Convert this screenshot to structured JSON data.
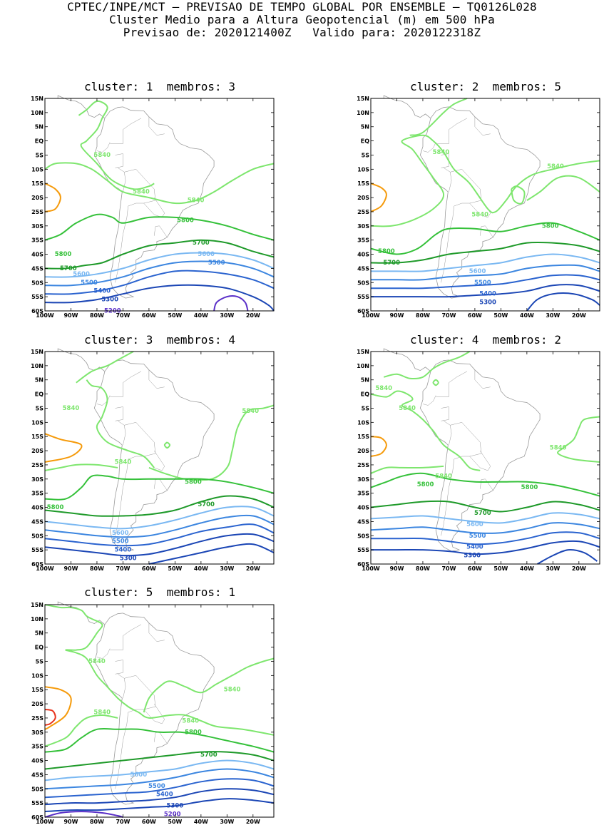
{
  "header": {
    "line1": "CPTEC/INPE/MCT — PREVISAO DE TEMPO GLOBAL POR ENSEMBLE — TQ0126L028",
    "line2": "Cluster Medio para a Altura Geopotencial (m) em 500 hPa",
    "line3": "Previsao de: 2020121400Z   Valido para: 2020122318Z"
  },
  "axes": {
    "lat_ticks": [
      "15N",
      "10N",
      "5N",
      "EQ",
      "5S",
      "10S",
      "15S",
      "20S",
      "25S",
      "30S",
      "35S",
      "40S",
      "45S",
      "50S",
      "55S",
      "60S"
    ],
    "lon_ticks": [
      "100W",
      "90W",
      "80W",
      "70W",
      "60W",
      "50W",
      "40W",
      "30W",
      "20W"
    ]
  },
  "colors": {
    "c5200": "#5a2fc8",
    "c5300": "#1b46b5",
    "c5400": "#2a63cf",
    "c5500": "#3c86e0",
    "c5600": "#7ab8f2",
    "c5700": "#1f9a2a",
    "c5800": "#35c13a",
    "c5840": "#7ee66e",
    "c5900": "#f59a0a",
    "c5950": "#e8321c",
    "land": "#9a9a9a"
  },
  "panels": [
    {
      "title": "cluster: 1  membros: 3",
      "labels": [
        {
          "text": "5840",
          "level": "c5840",
          "lon": -78,
          "lat": -5
        },
        {
          "text": "5840",
          "level": "c5840",
          "lon": -63,
          "lat": -18
        },
        {
          "text": "5840",
          "level": "c5840",
          "lon": -42,
          "lat": -21
        },
        {
          "text": "5800",
          "level": "c5800",
          "lon": -46,
          "lat": -28
        },
        {
          "text": "5800",
          "level": "c5800",
          "lon": -93,
          "lat": -40
        },
        {
          "text": "5700",
          "level": "c5700",
          "lon": -40,
          "lat": -36
        },
        {
          "text": "5700",
          "level": "c5700",
          "lon": -91,
          "lat": -45
        },
        {
          "text": "5600",
          "level": "c5600",
          "lon": -38,
          "lat": -40
        },
        {
          "text": "5600",
          "level": "c5600",
          "lon": -86,
          "lat": -47
        },
        {
          "text": "5500",
          "level": "c5500",
          "lon": -34,
          "lat": -43
        },
        {
          "text": "5500",
          "level": "c5500",
          "lon": -83,
          "lat": -50
        },
        {
          "text": "5400",
          "level": "c5400",
          "lon": -78,
          "lat": -53
        },
        {
          "text": "5300",
          "level": "c5300",
          "lon": -75,
          "lat": -56
        },
        {
          "text": "5200",
          "level": "c5200",
          "lon": -74,
          "lat": -60
        }
      ]
    },
    {
      "title": "cluster: 2  membros: 5",
      "labels": [
        {
          "text": "5840",
          "level": "c5840",
          "lon": -73,
          "lat": -4
        },
        {
          "text": "5840",
          "level": "c5840",
          "lon": -29,
          "lat": -9
        },
        {
          "text": "5840",
          "level": "c5840",
          "lon": -58,
          "lat": -26
        },
        {
          "text": "5800",
          "level": "c5800",
          "lon": -31,
          "lat": -30
        },
        {
          "text": "5800",
          "level": "c5800",
          "lon": -94,
          "lat": -39
        },
        {
          "text": "5700",
          "level": "c5700",
          "lon": -92,
          "lat": -43
        },
        {
          "text": "5600",
          "level": "c5600",
          "lon": -59,
          "lat": -46
        },
        {
          "text": "5500",
          "level": "c5500",
          "lon": -57,
          "lat": -50
        },
        {
          "text": "5400",
          "level": "c5400",
          "lon": -55,
          "lat": -54
        },
        {
          "text": "5300",
          "level": "c5300",
          "lon": -55,
          "lat": -57
        }
      ]
    },
    {
      "title": "cluster: 3  membros: 4",
      "labels": [
        {
          "text": "5840",
          "level": "c5840",
          "lon": -90,
          "lat": -5
        },
        {
          "text": "5840",
          "level": "c5840",
          "lon": -21,
          "lat": -6
        },
        {
          "text": "5840",
          "level": "c5840",
          "lon": -70,
          "lat": -24
        },
        {
          "text": "5800",
          "level": "c5800",
          "lon": -43,
          "lat": -31
        },
        {
          "text": "5800",
          "level": "c5800",
          "lon": -96,
          "lat": -40
        },
        {
          "text": "5700",
          "level": "c5700",
          "lon": -38,
          "lat": -39
        },
        {
          "text": "5600",
          "level": "c5600",
          "lon": -71,
          "lat": -49
        },
        {
          "text": "5500",
          "level": "c5500",
          "lon": -71,
          "lat": -52
        },
        {
          "text": "5400",
          "level": "c5400",
          "lon": -70,
          "lat": -55
        },
        {
          "text": "5300",
          "level": "c5300",
          "lon": -68,
          "lat": -58
        }
      ]
    },
    {
      "title": "cluster: 4  membros: 2",
      "labels": [
        {
          "text": "5840",
          "level": "c5840",
          "lon": -95,
          "lat": 2
        },
        {
          "text": "5840",
          "level": "c5840",
          "lon": -86,
          "lat": -5
        },
        {
          "text": "5840",
          "level": "c5840",
          "lon": -72,
          "lat": -29
        },
        {
          "text": "5840",
          "level": "c5840",
          "lon": -28,
          "lat": -19
        },
        {
          "text": "5800",
          "level": "c5800",
          "lon": -79,
          "lat": -32
        },
        {
          "text": "5800",
          "level": "c5800",
          "lon": -39,
          "lat": -33
        },
        {
          "text": "5700",
          "level": "c5700",
          "lon": -57,
          "lat": -42
        },
        {
          "text": "5600",
          "level": "c5600",
          "lon": -60,
          "lat": -46
        },
        {
          "text": "5500",
          "level": "c5500",
          "lon": -59,
          "lat": -50
        },
        {
          "text": "5400",
          "level": "c5400",
          "lon": -60,
          "lat": -54
        },
        {
          "text": "5300",
          "level": "c5300",
          "lon": -61,
          "lat": -57
        }
      ]
    },
    {
      "title": "cluster: 5  membros: 1",
      "labels": [
        {
          "text": "5840",
          "level": "c5840",
          "lon": -80,
          "lat": -5
        },
        {
          "text": "5840",
          "level": "c5840",
          "lon": -28,
          "lat": -15
        },
        {
          "text": "5840",
          "level": "c5840",
          "lon": -78,
          "lat": -23
        },
        {
          "text": "5840",
          "level": "c5840",
          "lon": -44,
          "lat": -26
        },
        {
          "text": "5800",
          "level": "c5800",
          "lon": -43,
          "lat": -30
        },
        {
          "text": "5700",
          "level": "c5700",
          "lon": -37,
          "lat": -38
        },
        {
          "text": "5600",
          "level": "c5600",
          "lon": -64,
          "lat": -45
        },
        {
          "text": "5500",
          "level": "c5500",
          "lon": -57,
          "lat": -49
        },
        {
          "text": "5400",
          "level": "c5400",
          "lon": -54,
          "lat": -52
        },
        {
          "text": "5300",
          "level": "c5300",
          "lon": -50,
          "lat": -56
        },
        {
          "text": "5200",
          "level": "c5200",
          "lon": -51,
          "lat": -59
        }
      ]
    }
  ]
}
